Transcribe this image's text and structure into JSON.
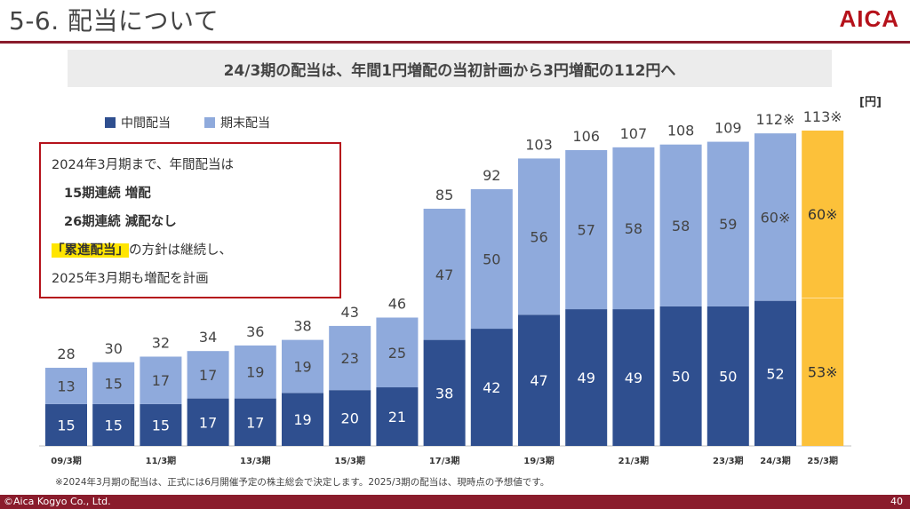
{
  "header": {
    "title": "5-6. 配当について",
    "logo": "AICA"
  },
  "banner": "24/3期の配当は、年間1円増配の当初計画から3円増配の112円へ",
  "unit": "[円]",
  "callout": {
    "line1": "2024年3月期まで、年間配当は",
    "line2": "15期連続 増配",
    "line3": "26期連続 減配なし",
    "line4_highlight": "「累進配当」",
    "line4_rest": "の方針は継続し、",
    "line5": "2025年3月期も増配を計画"
  },
  "footnote": "※2024年3月期の配当は、正式には6月開催予定の株主総会で決定します。2025/3期の配当は、現時点の予想値です。",
  "footer": {
    "copyright": "©Aica Kogyo Co., Ltd.",
    "page": "40"
  },
  "colors": {
    "interim": "#2f4f8f",
    "year_end": "#8faadc",
    "forecast": "#fcc13a",
    "brand": "#b5121b",
    "rule": "#8a1c2c"
  },
  "chart_data": {
    "type": "bar",
    "stacked": true,
    "unit": "[円]",
    "categories": [
      "09/3期",
      "",
      "11/3期",
      "",
      "13/3期",
      "",
      "15/3期",
      "",
      "17/3期",
      "",
      "19/3期",
      "",
      "21/3期",
      "",
      "23/3期",
      "24/3期",
      "25/3期"
    ],
    "series": [
      {
        "name": "中間配当",
        "color": "#2f4f8f",
        "values": [
          15,
          15,
          15,
          17,
          17,
          19,
          20,
          21,
          38,
          42,
          47,
          49,
          49,
          50,
          50,
          52,
          53
        ]
      },
      {
        "name": "期末配当",
        "color": "#8faadc",
        "values": [
          13,
          15,
          17,
          17,
          19,
          19,
          23,
          25,
          47,
          50,
          56,
          57,
          58,
          58,
          59,
          60,
          60
        ]
      }
    ],
    "totals": [
      28,
      30,
      32,
      34,
      36,
      38,
      43,
      46,
      85,
      92,
      103,
      106,
      107,
      108,
      109,
      112,
      113
    ],
    "total_labels": [
      "28",
      "30",
      "32",
      "34",
      "36",
      "38",
      "43",
      "46",
      "85",
      "92",
      "103",
      "106",
      "107",
      "108",
      "109",
      "112※",
      "113※"
    ],
    "interim_labels": [
      "15",
      "15",
      "15",
      "17",
      "17",
      "19",
      "20",
      "21",
      "38",
      "42",
      "47",
      "49",
      "49",
      "50",
      "50",
      "52",
      "53※"
    ],
    "year_end_labels": [
      "13",
      "15",
      "17",
      "17",
      "19",
      "19",
      "23",
      "25",
      "47",
      "50",
      "56",
      "57",
      "58",
      "58",
      "59",
      "60※",
      "60※"
    ],
    "forecast_index": 16,
    "ylim": [
      0,
      113
    ],
    "legend_position": "top-left",
    "grid": false
  }
}
